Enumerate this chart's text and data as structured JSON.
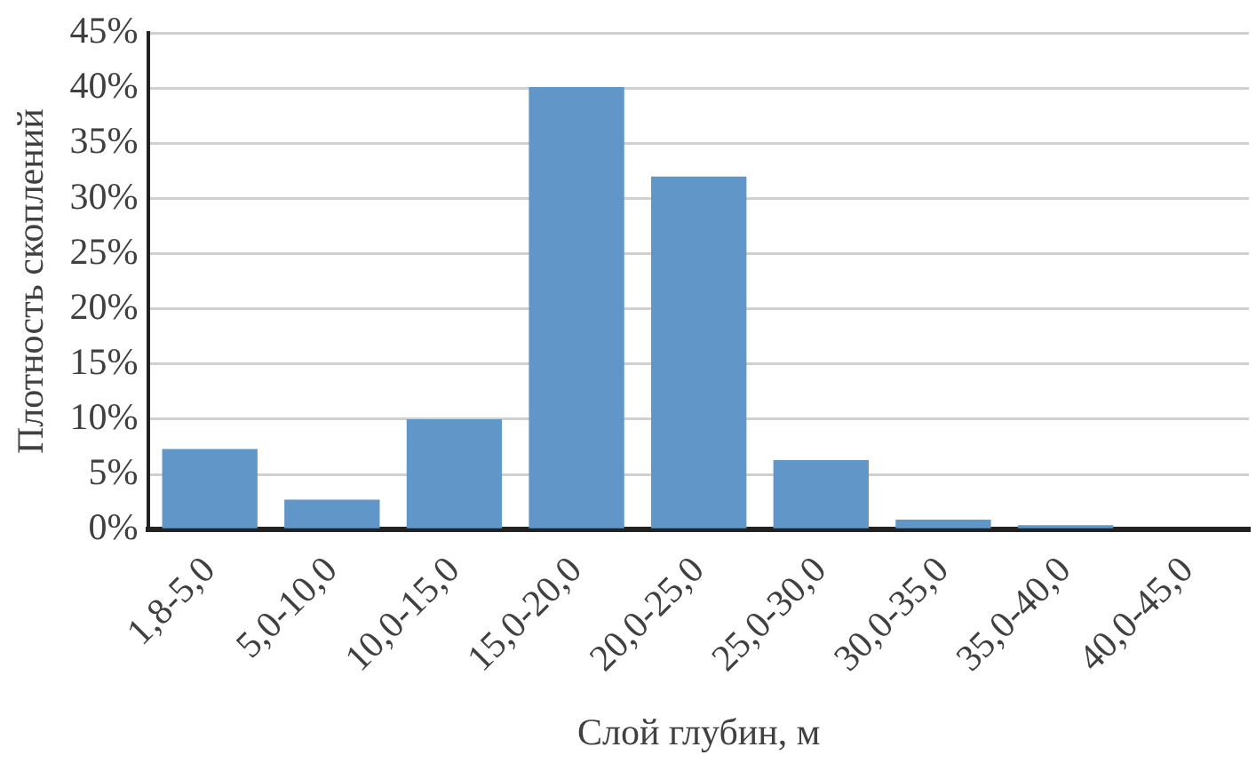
{
  "chart_data": {
    "type": "bar",
    "xlabel": "Слой глубин, м",
    "ylabel": "Плотность скоплений",
    "categories": [
      "1,8-5,0",
      "5,0-10,0",
      "10,0-15,0",
      "15,0-20,0",
      "20,0-25,0",
      "25,0-30,0",
      "30,0-35,0",
      "35,0-40,0",
      "40,0-45,0"
    ],
    "values": [
      7.3,
      2.7,
      10.0,
      40.1,
      32.0,
      6.3,
      0.9,
      0.4,
      0
    ],
    "color": "#6196c9",
    "ylim": [
      0,
      45
    ],
    "yticks": [
      {
        "value": 0,
        "label": "0%"
      },
      {
        "value": 5,
        "label": "5%"
      },
      {
        "value": 10,
        "label": "10%"
      },
      {
        "value": 15,
        "label": "15%"
      },
      {
        "value": 20,
        "label": "20%"
      },
      {
        "value": 25,
        "label": "25%"
      },
      {
        "value": 30,
        "label": "30%"
      },
      {
        "value": 35,
        "label": "35%"
      },
      {
        "value": 40,
        "label": "40%"
      },
      {
        "value": 45,
        "label": "45%"
      }
    ],
    "grid": "y",
    "legend": false
  }
}
